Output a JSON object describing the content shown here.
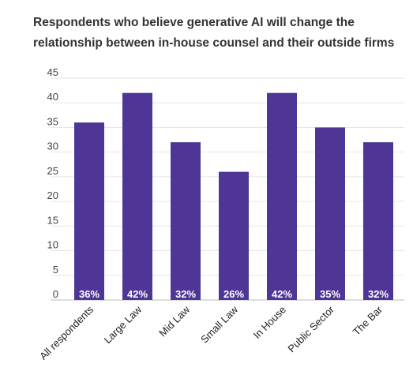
{
  "chart_data": {
    "type": "bar",
    "title_lines": [
      "Respondents who believe generative AI will change the",
      "relationship between in-house counsel and their outside firms"
    ],
    "categories": [
      "All respondents",
      "Large Law",
      "Mid Law",
      "Small Law",
      "In House",
      "Public Sector",
      "The Bar"
    ],
    "values": [
      36,
      42,
      32,
      26,
      42,
      35,
      32
    ],
    "data_labels": [
      "36%",
      "42%",
      "32%",
      "26%",
      "42%",
      "35%",
      "32%"
    ],
    "yticks": [
      "0",
      "5",
      "10",
      "15",
      "20",
      "25",
      "30",
      "35",
      "40",
      "45"
    ],
    "ylim": [
      0,
      45
    ],
    "grid": true,
    "legend": "none",
    "bar_color": "#4e3596",
    "grid_color": "#e6e6e6"
  }
}
